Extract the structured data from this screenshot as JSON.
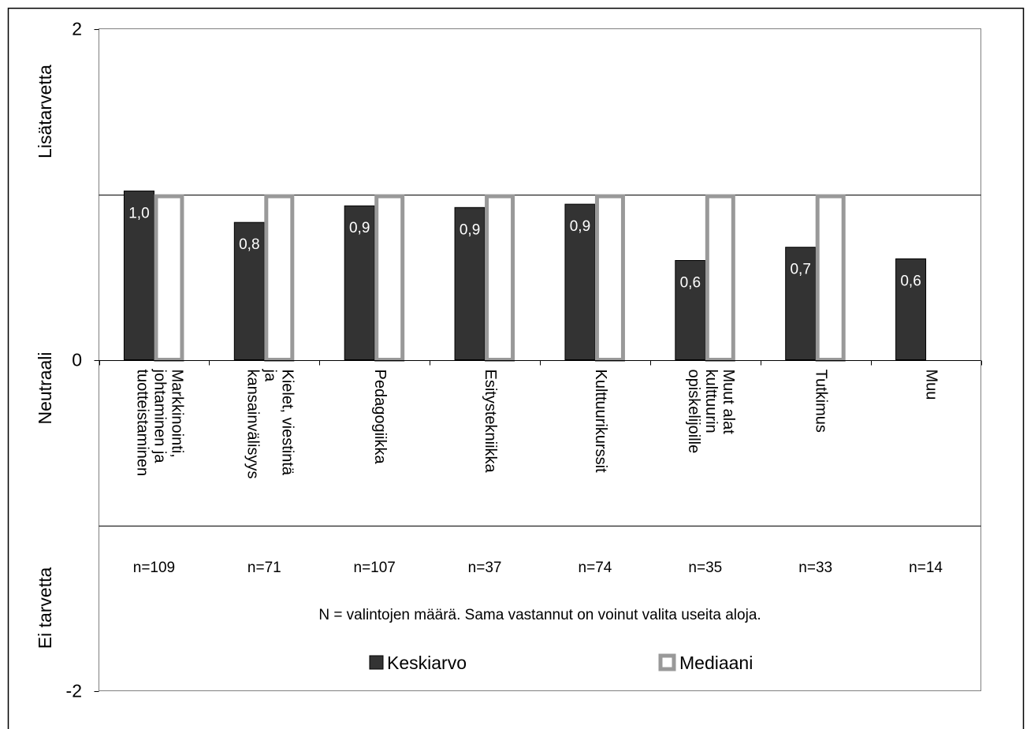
{
  "chart_data": {
    "type": "bar",
    "categories": [
      [
        "Markkinointi,",
        "johtaminen ja",
        "tuotteistaminen"
      ],
      [
        "Kielet, viestintä",
        "ja",
        "kansainvälisyys"
      ],
      [
        "Pedagogiikka"
      ],
      [
        "Esitystekniikka"
      ],
      [
        "Kulttuurikurssit"
      ],
      [
        "Muut alat",
        "kulttuurin",
        "opiskelijoille"
      ],
      [
        "Tutkimus"
      ],
      [
        "Muu"
      ]
    ],
    "series": [
      {
        "name": "Keskiarvo",
        "values": [
          1.02,
          0.83,
          0.93,
          0.92,
          0.94,
          0.6,
          0.68,
          0.61
        ],
        "labels": [
          "1,0",
          "0,8",
          "0,9",
          "0,9",
          "0,9",
          "0,6",
          "0,7",
          "0,6"
        ],
        "color": "#333333"
      },
      {
        "name": "Mediaani",
        "values": [
          1,
          1,
          1,
          1,
          1,
          1,
          1,
          null
        ],
        "color": "#999999"
      }
    ],
    "n_labels": [
      "n=109",
      "n=71",
      "n=107",
      "n=37",
      "n=74",
      "n=35",
      "n=33",
      "n=14"
    ],
    "ylim": [
      -2,
      2
    ],
    "yticks": [
      "2",
      "0",
      "-2"
    ],
    "reference_lines": [
      1,
      -1
    ],
    "y_zone_labels": [
      "Lisätarvetta",
      "Neutraali",
      "Ei tarvetta"
    ],
    "note": "N = valintojen määrä. Sama vastannut on voinut valita useita aloja.",
    "legend_placement": "bottom-center",
    "grid": false
  }
}
